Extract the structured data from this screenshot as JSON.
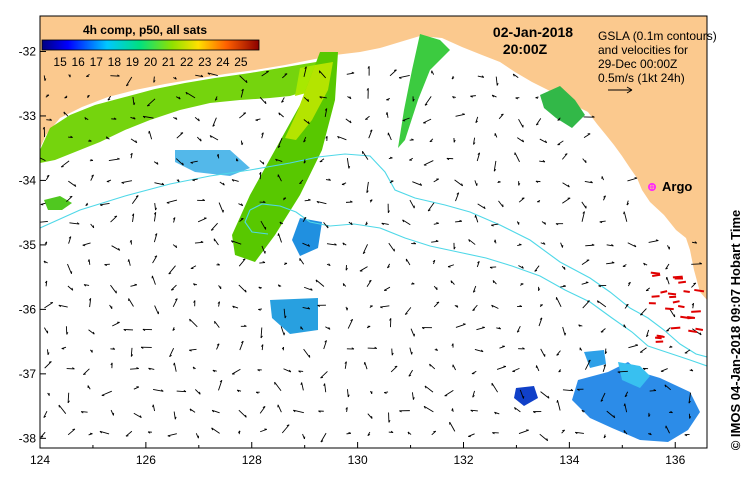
{
  "title": {
    "date": "02-Jan-2018",
    "time": "20:00Z"
  },
  "legend": {
    "label": "4h comp, p50, all sats",
    "ticks": [
      "15",
      "16",
      "17",
      "18",
      "19",
      "20",
      "21",
      "22",
      "23",
      "24",
      "25"
    ]
  },
  "info": {
    "line1": "GSLA (0.1m contours)",
    "line2": "and velocities for",
    "line3": "29-Dec 00:00Z",
    "line4": "0.5m/s (1kt 24h)"
  },
  "argo": {
    "label": "Argo"
  },
  "axes": {
    "x_ticks": [
      "124",
      "126",
      "128",
      "130",
      "132",
      "134",
      "136"
    ],
    "y_ticks": [
      "-32",
      "-33",
      "-34",
      "-35",
      "-36",
      "-37",
      "-38"
    ]
  },
  "credit": "© IMOS 04-Jan-2018 09:07 Hobart Time",
  "colors": {
    "land": "#FBC98E",
    "contour": "#4FD8E8",
    "argo": "#FF22FF",
    "arrow": "#000000",
    "red_arrow": "#E00000"
  },
  "chart_data": {
    "type": "heatmap",
    "xlim": [
      124,
      136.6
    ],
    "ylim": [
      -38.15,
      -31.45
    ],
    "colorbar": {
      "min": 14,
      "max": 26,
      "unit": "°C"
    }
  }
}
